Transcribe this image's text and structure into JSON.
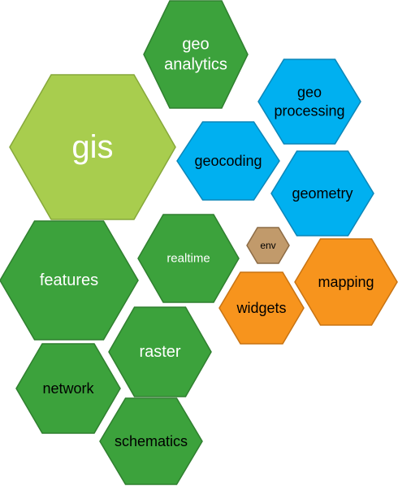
{
  "palette": {
    "green": "#3ca23c",
    "green_stroke": "#2f7f2f",
    "lime": "#a8cd4e",
    "lime_stroke": "#86a83a",
    "blue": "#00b0f0",
    "blue_stroke": "#0c86b8",
    "orange": "#f7941d",
    "orange_stroke": "#c87312",
    "brown": "#c19a6b",
    "brown_stroke": "#8c6b45"
  },
  "hexagons": [
    {
      "id": "geo-analytics",
      "lines": [
        "geo",
        "analytics"
      ],
      "color": "green",
      "text_color": "#ffffff"
    },
    {
      "id": "geo-processing",
      "lines": [
        "geo",
        "processing"
      ],
      "color": "blue",
      "text_color": "#000000"
    },
    {
      "id": "gis",
      "lines": [
        "gis"
      ],
      "color": "lime",
      "text_color": "#ffffff"
    },
    {
      "id": "geocoding",
      "lines": [
        "geocoding"
      ],
      "color": "blue",
      "text_color": "#000000"
    },
    {
      "id": "geometry",
      "lines": [
        "geometry"
      ],
      "color": "blue",
      "text_color": "#000000"
    },
    {
      "id": "realtime",
      "lines": [
        "realtime"
      ],
      "color": "green",
      "text_color": "#ffffff"
    },
    {
      "id": "env",
      "lines": [
        "env"
      ],
      "color": "brown",
      "text_color": "#000000"
    },
    {
      "id": "features",
      "lines": [
        "features"
      ],
      "color": "green",
      "text_color": "#ffffff"
    },
    {
      "id": "mapping",
      "lines": [
        "mapping"
      ],
      "color": "orange",
      "text_color": "#000000"
    },
    {
      "id": "widgets",
      "lines": [
        "widgets"
      ],
      "color": "orange",
      "text_color": "#000000"
    },
    {
      "id": "raster",
      "lines": [
        "raster"
      ],
      "color": "green",
      "text_color": "#ffffff"
    },
    {
      "id": "network",
      "lines": [
        "network"
      ],
      "color": "green",
      "text_color": "#000000"
    },
    {
      "id": "schematics",
      "lines": [
        "schematics"
      ],
      "color": "green",
      "text_color": "#000000"
    }
  ]
}
